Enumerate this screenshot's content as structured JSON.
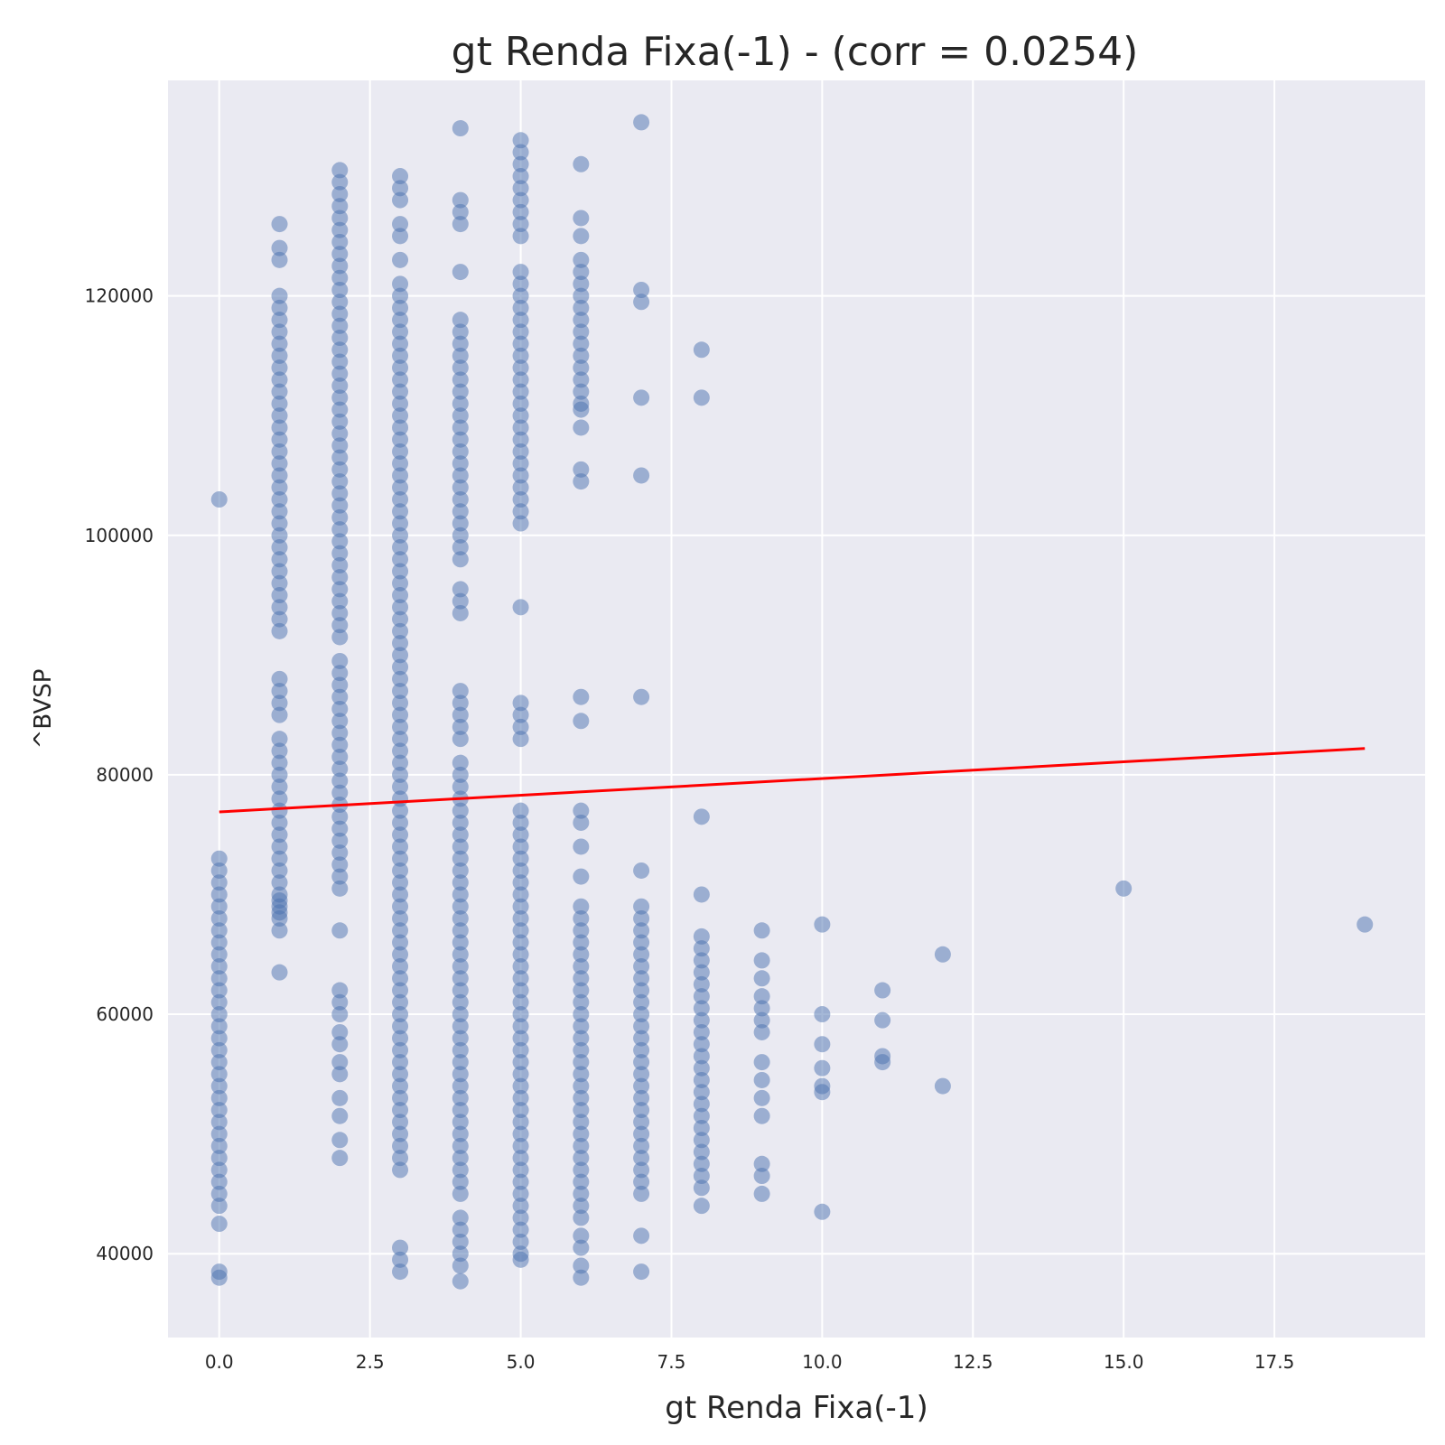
{
  "chart_data": {
    "type": "scatter",
    "title": "gt Renda Fixa(-1) - (corr = 0.0254)",
    "xlabel": "gt Renda Fixa(-1)",
    "ylabel": "^BVSP",
    "xlim": [
      -0.85,
      20.0
    ],
    "ylim": [
      33000,
      138000
    ],
    "xticks": [
      0.0,
      2.5,
      5.0,
      7.5,
      10.0,
      12.5,
      15.0,
      17.5
    ],
    "xtick_labels": [
      "0.0",
      "2.5",
      "5.0",
      "7.5",
      "10.0",
      "12.5",
      "15.0",
      "17.5"
    ],
    "yticks": [
      40000,
      60000,
      80000,
      100000,
      120000
    ],
    "ytick_labels": [
      "40000",
      "60000",
      "80000",
      "100000",
      "120000"
    ],
    "grid": true,
    "background": "#eaeaf2",
    "point_color": "#4c72b0",
    "fit_color": "#ff0000",
    "fit_line": {
      "x": [
        0,
        19
      ],
      "y": [
        76900,
        82200
      ]
    },
    "clusters": [
      {
        "x": 0,
        "ranges": [
          [
            44000,
            73000
          ]
        ],
        "points": [
          103000,
          42500,
          38500,
          38000
        ]
      },
      {
        "x": 1,
        "ranges": [
          [
            92000,
            120500
          ],
          [
            85000,
            88800
          ],
          [
            67000,
            83500
          ]
        ],
        "points": [
          126000,
          124000,
          123000,
          63500,
          69500,
          68500
        ]
      },
      {
        "x": 2,
        "ranges": [
          [
            91500,
            131000
          ],
          [
            70500,
            89500
          ]
        ],
        "points": [
          67000,
          62000,
          61000,
          60000,
          58500,
          57500,
          56000,
          55000,
          53000,
          51500,
          49500,
          48000
        ]
      },
      {
        "x": 3,
        "ranges": [
          [
            47000,
            121000
          ]
        ],
        "points": [
          130000,
          129000,
          128000,
          126000,
          125000,
          123000,
          40500,
          39500,
          38500
        ]
      },
      {
        "x": 4,
        "ranges": [
          [
            98000,
            118500
          ],
          [
            93500,
            96000
          ],
          [
            83000,
            87000
          ],
          [
            45000,
            81000
          ]
        ],
        "points": [
          134000,
          128000,
          127000,
          126000,
          122000,
          43000,
          42000,
          41000,
          40000,
          39000,
          37700
        ]
      },
      {
        "x": 5,
        "ranges": [
          [
            101000,
            122000
          ],
          [
            43000,
            77000
          ]
        ],
        "points": [
          133000,
          132000,
          131000,
          130000,
          129000,
          128000,
          127000,
          126000,
          125000,
          94000,
          86000,
          85000,
          84000,
          83000,
          42000,
          41000,
          40000,
          39500
        ]
      },
      {
        "x": 6,
        "ranges": [
          [
            111000,
            121000
          ],
          [
            43000,
            69000
          ]
        ],
        "points": [
          131000,
          126500,
          125000,
          123000,
          122000,
          110500,
          109000,
          105500,
          104500,
          86500,
          84500,
          77000,
          76000,
          74000,
          71500,
          41500,
          40500,
          39000,
          38000
        ]
      },
      {
        "x": 7,
        "ranges": [
          [
            45000,
            68000
          ]
        ],
        "points": [
          134500,
          120500,
          119500,
          111500,
          105000,
          86500,
          72000,
          69000,
          41500,
          38500
        ]
      },
      {
        "x": 8,
        "ranges": [
          [
            46500,
            66500
          ]
        ],
        "points": [
          115500,
          111500,
          76500,
          70000,
          45500,
          44000
        ]
      },
      {
        "x": 9,
        "points": [
          67000,
          64500,
          63000,
          61500,
          60500,
          59500,
          58500,
          56000,
          54500,
          53000,
          51500,
          47500,
          46500,
          45000
        ]
      },
      {
        "x": 10,
        "points": [
          67500,
          60000,
          57500,
          55500,
          54000,
          53500,
          43500
        ]
      },
      {
        "x": 11,
        "points": [
          62000,
          59500,
          56500,
          56000
        ]
      },
      {
        "x": 12,
        "points": [
          65000,
          54000
        ]
      },
      {
        "x": 15,
        "points": [
          70500
        ]
      },
      {
        "x": 19,
        "points": [
          67500
        ]
      }
    ]
  }
}
